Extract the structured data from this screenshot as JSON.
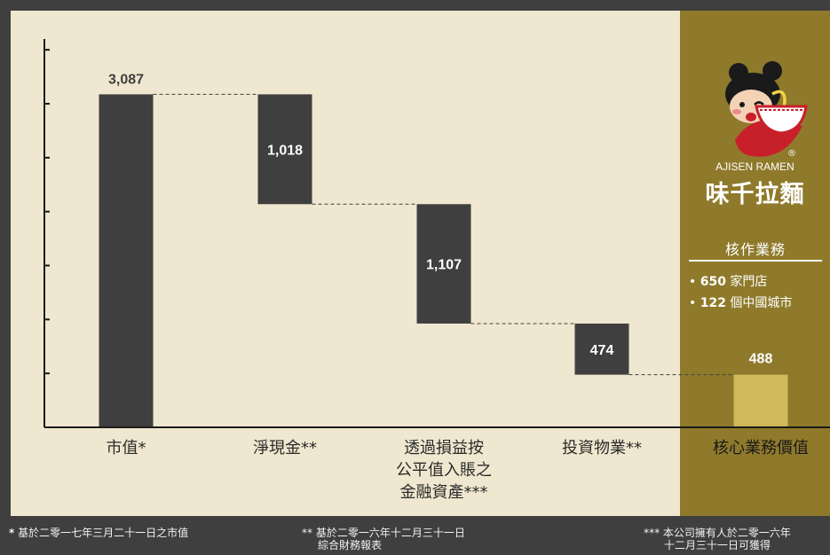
{
  "chart_data": {
    "type": "bar",
    "subtype": "waterfall",
    "categories": [
      "市值*",
      "淨現金**",
      "透過損益按\n公平值入賬之\n金融資產***",
      "投資物業**",
      "核心業務價值"
    ],
    "values": [
      3087,
      1018,
      1107,
      474,
      488
    ],
    "value_labels": [
      "3,087",
      "1,018",
      "1,107",
      "474",
      "488"
    ],
    "steps": [
      {
        "start": 0,
        "end": 3087
      },
      {
        "start": 2069,
        "end": 3087
      },
      {
        "start": 962,
        "end": 2069
      },
      {
        "start": 488,
        "end": 962
      },
      {
        "start": 0,
        "end": 488
      }
    ],
    "ylim": [
      0,
      3600
    ],
    "title": "",
    "xlabel": "",
    "ylabel": "",
    "grid": false,
    "colors": {
      "bar": "#3f3f3f",
      "highlight": "#cfb95a",
      "label_light": "#ffffff",
      "label_dark": "#3f3f3f"
    }
  },
  "brand": {
    "name_en": "AJISEN RAMEN",
    "name_cn": "味千拉麵",
    "registered": "®",
    "mascot_icon": "ajisen-mascot-girl-with-ramen-bowl"
  },
  "core_business": {
    "title": "核作業務",
    "items": [
      {
        "bullet": "•",
        "number": "650",
        "text": " 家門店"
      },
      {
        "bullet": "•",
        "number": "122",
        "text": " 個中國城市"
      }
    ]
  },
  "footnotes": {
    "note1_star": "*",
    "note1": " 基於二零一七年三月二十一日之市值",
    "note2_line1": "** 基於二零一六年十二月三十一日",
    "note2_line2": "綜合財務報表",
    "note3_line1": "*** 本公司擁有人於二零一六年",
    "note3_line2": "十二月三十一日可獲得"
  },
  "colors": {
    "background": "#3f3f3f",
    "panel": "#efe7cf",
    "brand_panel": "#8f7a2b"
  }
}
